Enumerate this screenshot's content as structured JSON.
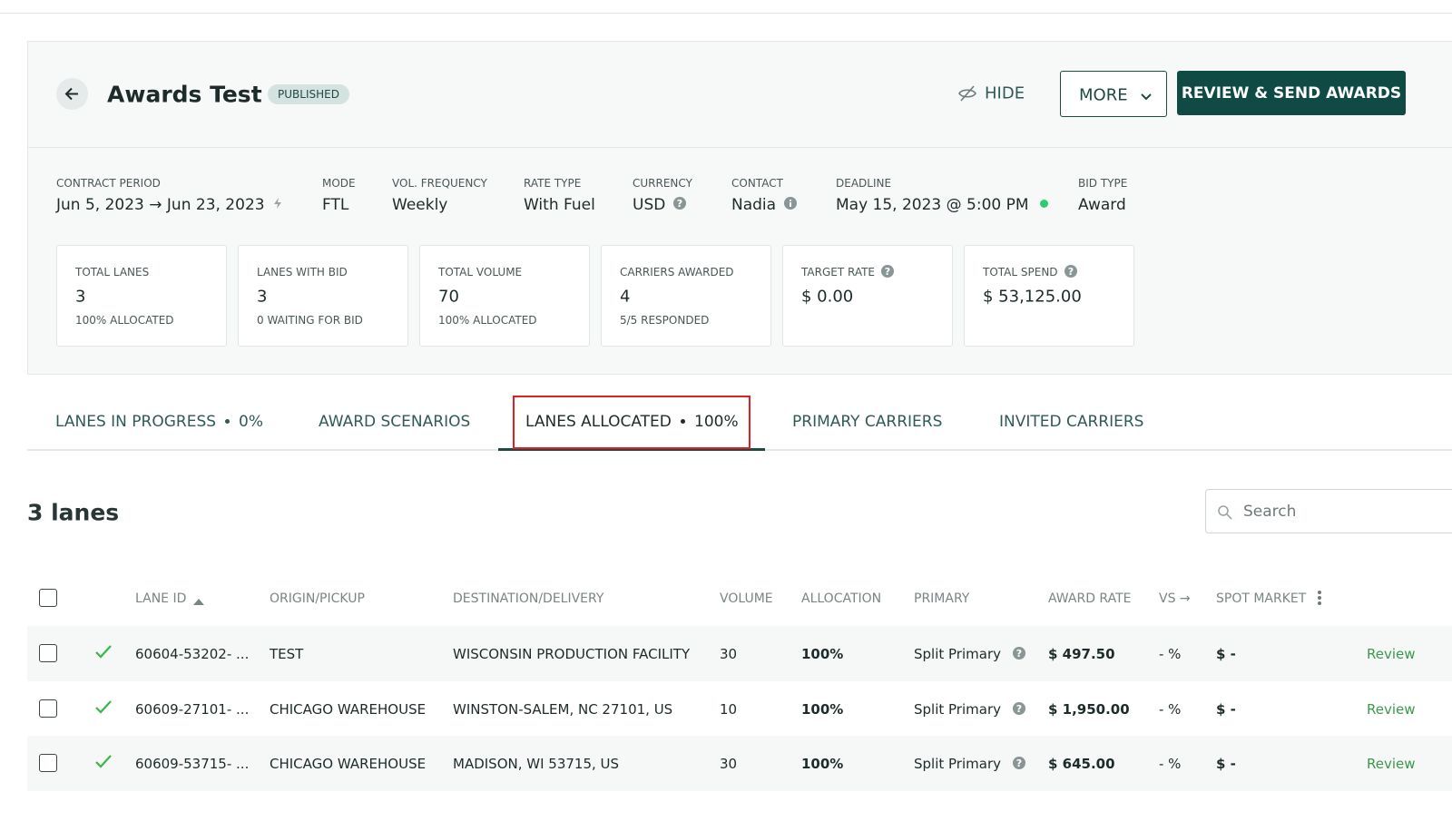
{
  "header": {
    "title": "Awards Test",
    "status": "PUBLISHED",
    "hide": "HIDE",
    "more": "MORE",
    "review": "REVIEW & SEND AWARDS"
  },
  "meta": [
    {
      "label": "CONTRACT PERIOD",
      "value": "Jun 5, 2023 → Jun 23, 2023"
    },
    {
      "label": "MODE",
      "value": "FTL"
    },
    {
      "label": "VOL. FREQUENCY",
      "value": "Weekly"
    },
    {
      "label": "RATE TYPE",
      "value": "With Fuel"
    },
    {
      "label": "CURRENCY",
      "value": "USD"
    },
    {
      "label": "CONTACT",
      "value": "Nadia"
    },
    {
      "label": "DEADLINE",
      "value": "May 15, 2023 @ 5:00 PM"
    },
    {
      "label": "BID TYPE",
      "value": "Award"
    }
  ],
  "stats": [
    {
      "label": "TOTAL LANES",
      "value": "3",
      "note": "100% ALLOCATED"
    },
    {
      "label": "LANES WITH BID",
      "value": "3",
      "note": "0 WAITING FOR BID"
    },
    {
      "label": "TOTAL VOLUME",
      "value": "70",
      "note": "100% ALLOCATED"
    },
    {
      "label": "CARRIERS AWARDED",
      "value": "4",
      "note": "5/5 RESPONDED"
    },
    {
      "label": "TARGET RATE",
      "value": "$ 0.00"
    },
    {
      "label": "TOTAL SPEND",
      "value": "$ 53,125.00"
    }
  ],
  "tabs": [
    {
      "label": "LANES IN PROGRESS",
      "value": "0%"
    },
    {
      "label": "AWARD SCENARIOS"
    },
    {
      "label": "LANES ALLOCATED",
      "value": "100%"
    },
    {
      "label": "PRIMARY CARRIERS"
    },
    {
      "label": "INVITED CARRIERS"
    }
  ],
  "lanes_title": "3 lanes",
  "search": "Search",
  "table": {
    "columns": [
      "LANE ID",
      "ORIGIN/PICKUP",
      "DESTINATION/DELIVERY",
      "VOLUME",
      "ALLOCATION",
      "PRIMARY",
      "AWARD RATE",
      "VS →",
      "SPOT MARKET"
    ],
    "rows": [
      [
        "60604-53202- ...",
        "TEST",
        "WISCONSIN PRODUCTION FACILITY",
        "30",
        "100%",
        "Split Primary",
        "$ 497.50",
        "- %",
        "$ -",
        "Review"
      ],
      [
        "60609-27101- ...",
        "CHICAGO WAREHOUSE",
        "WINSTON-SALEM, NC 27101, US",
        "10",
        "100%",
        "Split Primary",
        "$ 1,950.00",
        "- %",
        "$ -",
        "Review"
      ],
      [
        "60609-53715- ...",
        "CHICAGO WAREHOUSE",
        "MADISON, WI 53715, US",
        "30",
        "100%",
        "Split Primary",
        "$ 645.00",
        "- %",
        "$ -",
        "Review"
      ]
    ]
  }
}
